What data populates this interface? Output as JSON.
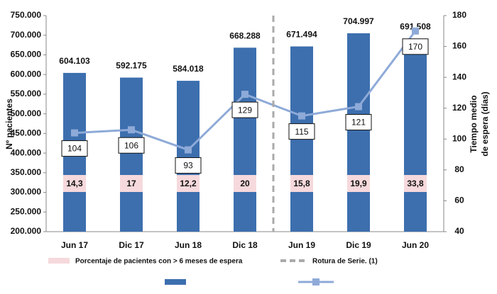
{
  "chart_data": {
    "type": "bar_line",
    "ylabel": "Nº pacientes",
    "y2label": [
      "Tiempo medio",
      "de espera (días)"
    ],
    "categories": [
      "Jun 17",
      "Dic 17",
      "Jun 18",
      "Dic 18",
      "Jun 19",
      "Dic 19",
      "Jun 20"
    ],
    "series": [
      {
        "type": "bar",
        "color": "#3d6fae",
        "values": [
          604103,
          592175,
          584018,
          668288,
          671494,
          704997,
          691508
        ],
        "value_labels": [
          "604.103",
          "592.175",
          "584.018",
          "668.288",
          "671.494",
          "704.997",
          "691.508"
        ]
      },
      {
        "type": "line",
        "axis": "y2",
        "color": "#8eaad8",
        "values": [
          104,
          106,
          93,
          129,
          115,
          121,
          170
        ]
      },
      {
        "type": "label_box",
        "name": "Porcentaje de pacientes con > 6 meses  de espera",
        "color": "#f6d9dc",
        "values": [
          14.3,
          17,
          12.2,
          20,
          15.8,
          19.9,
          33.8
        ],
        "value_labels": [
          "14,3",
          "17",
          "12,2",
          "20",
          "15,8",
          "19,9",
          "33,8"
        ]
      }
    ],
    "series_break": {
      "name": "Rotura de Serie. (1)",
      "after_index": 3,
      "color": "#aaaaaa"
    },
    "ylim": [
      200000,
      750000
    ],
    "yticks": [
      {
        "value": 200000,
        "label": "200.000"
      },
      {
        "value": 250000,
        "label": "250.000"
      },
      {
        "value": 300000,
        "label": "300.000"
      },
      {
        "value": 350000,
        "label": "350.000"
      },
      {
        "value": 400000,
        "label": "400.000"
      },
      {
        "value": 450000,
        "label": "450.000"
      },
      {
        "value": 500000,
        "label": "500.000"
      },
      {
        "value": 550000,
        "label": "550.000"
      },
      {
        "value": 600000,
        "label": "600.000"
      },
      {
        "value": 650000,
        "label": "650.000"
      },
      {
        "value": 700000,
        "label": "700.000"
      },
      {
        "value": 750000,
        "label": "750.000"
      }
    ],
    "y2lim": [
      40,
      180
    ],
    "y2ticks": [
      40,
      60,
      80,
      100,
      120,
      140,
      160,
      180
    ]
  }
}
